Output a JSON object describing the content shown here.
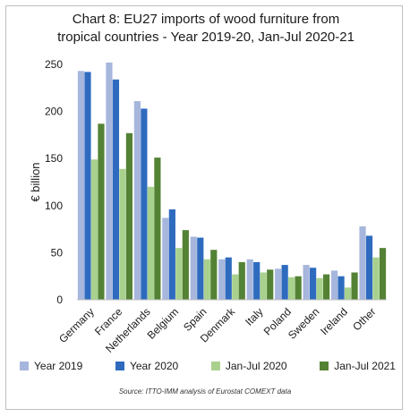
{
  "chart_data": {
    "type": "bar",
    "title_line1": "Chart 8: EU27 imports of wood furniture from",
    "title_line2": "tropical countries - Year 2019-20, Jan-Jul 2020-21",
    "ylabel": "€ billion",
    "xlabel": "",
    "ylim": [
      0,
      250
    ],
    "yticks": [
      0,
      50,
      100,
      150,
      200,
      250
    ],
    "categories": [
      "Germany",
      "France",
      "Netherlands",
      "Belgium",
      "Spain",
      "Denmark",
      "Italy",
      "Poland",
      "Sweden",
      "Ireland",
      "Other"
    ],
    "series": [
      {
        "name": "Year 2019",
        "color": "#a6b6dc",
        "values": [
          243,
          252,
          211,
          87,
          67,
          43,
          43,
          33,
          37,
          31,
          78
        ]
      },
      {
        "name": "Year 2020",
        "color": "#2e6bbf",
        "values": [
          242,
          234,
          203,
          96,
          66,
          45,
          40,
          37,
          34,
          25,
          68
        ]
      },
      {
        "name": "Jan-Jul 2020",
        "color": "#a9d18e",
        "values": [
          149,
          139,
          120,
          55,
          43,
          27,
          29,
          24,
          23,
          13,
          45
        ]
      },
      {
        "name": "Jan-Jul 2021",
        "color": "#548235",
        "values": [
          187,
          177,
          151,
          74,
          53,
          40,
          32,
          25,
          27,
          29,
          55
        ]
      }
    ],
    "grid": false,
    "legend_position": "bottom",
    "source": "Source: ITTO-IMM analysis of Eurostat COMEXT data"
  }
}
